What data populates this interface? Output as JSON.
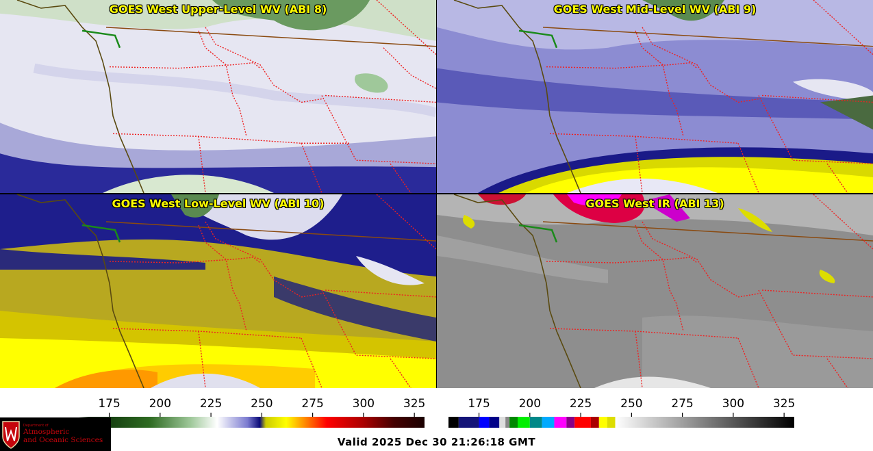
{
  "panels": [
    {
      "id": "p1",
      "title": "GOES West Upper-Level WV (ABI 8)",
      "scheme": "wv_upper"
    },
    {
      "id": "p2",
      "title": "GOES West Mid-Level WV (ABI 9)",
      "scheme": "wv_mid"
    },
    {
      "id": "p3",
      "title": "GOES West Low-Level WV (ABI 10)",
      "scheme": "wv_low"
    },
    {
      "id": "p4",
      "title": "GOES West IR (ABI 13)",
      "scheme": "ir"
    }
  ],
  "colorbars": [
    {
      "name": "wv-colorbar",
      "range": [
        160,
        330
      ],
      "ticks": [
        "175",
        "200",
        "225",
        "250",
        "275",
        "300",
        "325"
      ],
      "stops": [
        [
          160,
          "#ffffff"
        ],
        [
          165,
          "#0a2a08"
        ],
        [
          195,
          "#2e6b22"
        ],
        [
          215,
          "#9fc89a"
        ],
        [
          228,
          "#ffffff"
        ],
        [
          243,
          "#7b7bd0"
        ],
        [
          249,
          "#0a0a78"
        ],
        [
          252,
          "#cccc00"
        ],
        [
          262,
          "#ffff00"
        ],
        [
          270,
          "#ff9900"
        ],
        [
          282,
          "#ff0000"
        ],
        [
          300,
          "#aa0000"
        ],
        [
          315,
          "#440000"
        ],
        [
          330,
          "#1a0000"
        ]
      ]
    },
    {
      "name": "ir-colorbar",
      "range": [
        160,
        330
      ],
      "ticks": [
        "175",
        "200",
        "225",
        "250",
        "275",
        "300",
        "325"
      ],
      "segments": [
        [
          160,
          165,
          "#000000"
        ],
        [
          165,
          175,
          "#141478"
        ],
        [
          175,
          180,
          "#0000ff"
        ],
        [
          180,
          185,
          "#000088"
        ],
        [
          185,
          188,
          "#dddddd"
        ],
        [
          188,
          190,
          "#888888"
        ],
        [
          190,
          194,
          "#008800"
        ],
        [
          194,
          200,
          "#00ee00"
        ],
        [
          200,
          206,
          "#008888"
        ],
        [
          206,
          212,
          "#00aaff"
        ],
        [
          212,
          218,
          "#ff00ff"
        ],
        [
          218,
          222,
          "#880088"
        ],
        [
          222,
          230,
          "#ff0000"
        ],
        [
          230,
          234,
          "#aa0000"
        ],
        [
          234,
          238,
          "#ffff00"
        ],
        [
          238,
          242,
          "#dddd00"
        ]
      ],
      "gray_from": 242,
      "gray_range": [
        242,
        330
      ]
    }
  ],
  "logo": {
    "line1": "Department of",
    "line2": "Atmospheric",
    "line3": "and Oceanic Sciences"
  },
  "valid_time": "Valid 2025 Dec 30 21:26:18 GMT"
}
